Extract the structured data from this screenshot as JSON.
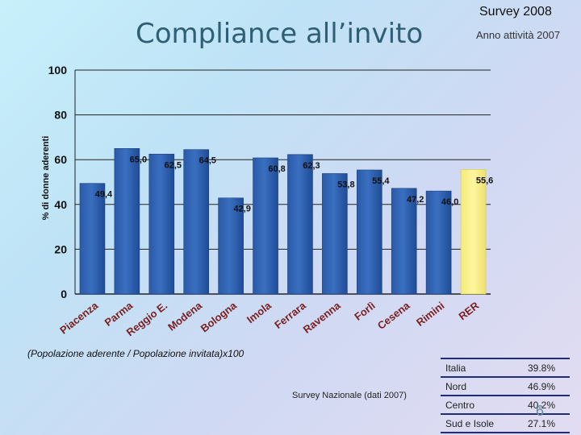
{
  "slide": {
    "title": "Compliance all’invito",
    "survey_label": "Survey 2008",
    "activity_year": "Anno attività 2007",
    "formula": "(Popolazione aderente / Popolazione invitata)x100",
    "national_label": "Survey Nazionale (dati 2007)",
    "page_number": "6"
  },
  "national_stats": [
    {
      "label": "Italia",
      "value": "39.8%"
    },
    {
      "label": "Nord",
      "value": "46.9%"
    },
    {
      "label": "Centro",
      "value": "40.2%"
    },
    {
      "label": "Sud e Isole",
      "value": "27.1%"
    }
  ],
  "chart_data": {
    "type": "bar",
    "ylabel": "% di donne aderenti",
    "ylim": [
      0,
      100
    ],
    "yticks": [
      "0",
      "20",
      "40",
      "60",
      "80",
      "100"
    ],
    "yticks_values": [
      0,
      20,
      40,
      60,
      80,
      100
    ],
    "grid": true,
    "categories": [
      "Piacenza",
      "Parma",
      "Reggio E.",
      "Modena",
      "Bologna",
      "Imola",
      "Ferrara",
      "Ravenna",
      "Forlì",
      "Cesena",
      "Rimini",
      "RER"
    ],
    "values": [
      49.4,
      65.0,
      62.5,
      64.5,
      42.9,
      60.8,
      62.3,
      53.8,
      55.4,
      47.2,
      46.0,
      55.6
    ],
    "value_labels": [
      "49,4",
      "65,0",
      "62,5",
      "64,5",
      "42,9",
      "60,8",
      "62,3",
      "53,8",
      "55,4",
      "47,2",
      "46,0",
      "55,6"
    ],
    "colors": {
      "bar": "#3a6fc0",
      "highlight_bar": "#fdf6a0",
      "gridline": "#222222"
    },
    "highlight_category": "RER"
  }
}
